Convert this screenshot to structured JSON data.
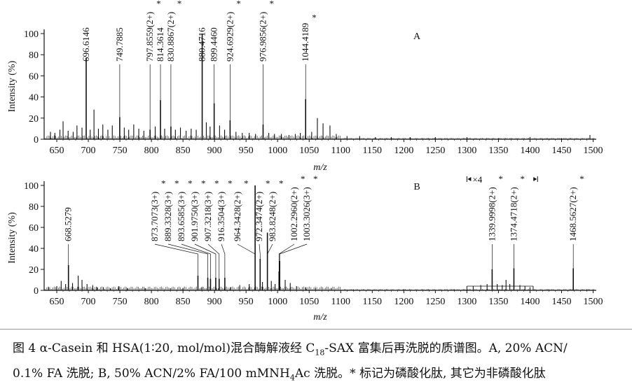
{
  "chart_data": [
    {
      "type": "line",
      "panel": "A",
      "xlabel": "m/z",
      "ylabel": "Intensity (%)",
      "xlim": [
        630,
        1505
      ],
      "ylim": [
        0,
        100
      ],
      "x_ticks": [
        650,
        700,
        750,
        800,
        850,
        900,
        950,
        1000,
        1050,
        1100,
        1150,
        1200,
        1250,
        1300,
        1350,
        1400,
        1450,
        1500
      ],
      "y_ticks": [
        0,
        20,
        40,
        60,
        80,
        100
      ],
      "peaks": [
        {
          "mz": 696.6146,
          "intensity": 77,
          "label": "696.6146",
          "star": false
        },
        {
          "mz": 749.7885,
          "intensity": 21,
          "label": "749.7885",
          "star": false
        },
        {
          "mz": 797.8559,
          "intensity": 9,
          "label": "797.8559(2+)",
          "star": true
        },
        {
          "mz": 814.3614,
          "intensity": 37,
          "label": "814.3614",
          "star": false
        },
        {
          "mz": 830.8867,
          "intensity": 12,
          "label": "830.8867(2+)",
          "star": true
        },
        {
          "mz": 880.4716,
          "intensity": 100,
          "label": "880.4716",
          "star": false
        },
        {
          "mz": 899.446,
          "intensity": 34,
          "label": "899.4460",
          "star": false
        },
        {
          "mz": 924.6929,
          "intensity": 18,
          "label": "924.6929(2+)",
          "star": true
        },
        {
          "mz": 976.9856,
          "intensity": 14,
          "label": "976.9856(2+)",
          "star": true
        },
        {
          "mz": 1044.4189,
          "intensity": 38,
          "label": "1044.4189",
          "star": true
        }
      ],
      "minor_peaks": [
        {
          "mz": 640,
          "intensity": 7
        },
        {
          "mz": 647,
          "intensity": 6
        },
        {
          "mz": 655,
          "intensity": 9
        },
        {
          "mz": 660,
          "intensity": 17
        },
        {
          "mz": 668,
          "intensity": 8
        },
        {
          "mz": 676,
          "intensity": 7
        },
        {
          "mz": 682,
          "intensity": 13
        },
        {
          "mz": 690,
          "intensity": 11
        },
        {
          "mz": 703,
          "intensity": 9
        },
        {
          "mz": 709,
          "intensity": 28
        },
        {
          "mz": 716,
          "intensity": 10
        },
        {
          "mz": 723,
          "intensity": 14
        },
        {
          "mz": 731,
          "intensity": 9
        },
        {
          "mz": 738,
          "intensity": 13
        },
        {
          "mz": 757,
          "intensity": 11
        },
        {
          "mz": 764,
          "intensity": 9
        },
        {
          "mz": 772,
          "intensity": 14
        },
        {
          "mz": 780,
          "intensity": 10
        },
        {
          "mz": 788,
          "intensity": 8
        },
        {
          "mz": 806,
          "intensity": 12
        },
        {
          "mz": 821,
          "intensity": 10
        },
        {
          "mz": 838,
          "intensity": 9
        },
        {
          "mz": 846,
          "intensity": 11
        },
        {
          "mz": 855,
          "intensity": 8
        },
        {
          "mz": 863,
          "intensity": 10
        },
        {
          "mz": 871,
          "intensity": 9
        },
        {
          "mz": 887,
          "intensity": 16
        },
        {
          "mz": 893,
          "intensity": 12
        },
        {
          "mz": 908,
          "intensity": 13
        },
        {
          "mz": 916,
          "intensity": 9
        },
        {
          "mz": 934,
          "intensity": 7
        },
        {
          "mz": 944,
          "intensity": 6
        },
        {
          "mz": 955,
          "intensity": 6
        },
        {
          "mz": 965,
          "intensity": 5
        },
        {
          "mz": 986,
          "intensity": 6
        },
        {
          "mz": 995,
          "intensity": 5
        },
        {
          "mz": 1006,
          "intensity": 5
        },
        {
          "mz": 1018,
          "intensity": 4
        },
        {
          "mz": 1028,
          "intensity": 5
        },
        {
          "mz": 1036,
          "intensity": 6
        },
        {
          "mz": 1054,
          "intensity": 7
        },
        {
          "mz": 1063,
          "intensity": 20
        },
        {
          "mz": 1072,
          "intensity": 15
        },
        {
          "mz": 1083,
          "intensity": 13
        },
        {
          "mz": 1093,
          "intensity": 5
        },
        {
          "mz": 1110,
          "intensity": 3
        },
        {
          "mz": 1130,
          "intensity": 3
        },
        {
          "mz": 1155,
          "intensity": 2
        },
        {
          "mz": 1180,
          "intensity": 2
        },
        {
          "mz": 1210,
          "intensity": 2
        },
        {
          "mz": 1250,
          "intensity": 2
        },
        {
          "mz": 1300,
          "intensity": 2
        },
        {
          "mz": 1350,
          "intensity": 1
        },
        {
          "mz": 1400,
          "intensity": 2
        },
        {
          "mz": 1450,
          "intensity": 1
        },
        {
          "mz": 1495,
          "intensity": 4
        }
      ]
    },
    {
      "type": "line",
      "panel": "B",
      "xlabel": "m/z",
      "ylabel": "Intensity (%)",
      "xlim": [
        630,
        1505
      ],
      "ylim": [
        0,
        100
      ],
      "x_ticks": [
        650,
        700,
        750,
        800,
        850,
        900,
        950,
        1000,
        1050,
        1100,
        1150,
        1200,
        1250,
        1300,
        1350,
        1400,
        1450,
        1500
      ],
      "y_ticks": [
        0,
        20,
        40,
        60,
        80,
        100
      ],
      "zoom_region": {
        "from": 1300,
        "to": 1405,
        "label": "×4"
      },
      "peaks": [
        {
          "mz": 668.5279,
          "intensity": 24,
          "label": "668.5279",
          "star": false
        },
        {
          "mz": 873.7073,
          "intensity": 14,
          "label": "873.7073(3+)",
          "star": true
        },
        {
          "mz": 889.3328,
          "intensity": 12,
          "label": "889.3328(3+)",
          "star": true
        },
        {
          "mz": 893.6585,
          "intensity": 11,
          "label": "893.6585(3+)",
          "star": true
        },
        {
          "mz": 901.975,
          "intensity": 12,
          "label": "901.9750(3+)",
          "star": true
        },
        {
          "mz": 907.3218,
          "intensity": 11,
          "label": "907.3218(3+)",
          "star": true
        },
        {
          "mz": 916.3504,
          "intensity": 12,
          "label": "916.3504(3+)",
          "star": true
        },
        {
          "mz": 964.3428,
          "intensity": 100,
          "label": "964.3428(2+)",
          "star": true
        },
        {
          "mz": 972.3474,
          "intensity": 30,
          "label": "972.3474(2+)",
          "star": true
        },
        {
          "mz": 983.8248,
          "intensity": 55,
          "label": "983.8248(2+)",
          "star": true
        },
        {
          "mz": 1002.296,
          "intensity": 18,
          "label": "1002.2960(2+)",
          "star": true
        },
        {
          "mz": 1003.3026,
          "intensity": 28,
          "label": "1003.3026(3+)",
          "star": true
        },
        {
          "mz": 1339.9998,
          "intensity": 20,
          "label": "1339.9998(2+)",
          "star": true
        },
        {
          "mz": 1374.4718,
          "intensity": 21,
          "label": "1374.4718(2+)",
          "star": true
        },
        {
          "mz": 1468.5627,
          "intensity": 21,
          "label": "1468.5627(2+)",
          "star": true
        }
      ],
      "minor_peaks": [
        {
          "mz": 637,
          "intensity": 3
        },
        {
          "mz": 650,
          "intensity": 4
        },
        {
          "mz": 657,
          "intensity": 9
        },
        {
          "mz": 664,
          "intensity": 6
        },
        {
          "mz": 675,
          "intensity": 7
        },
        {
          "mz": 684,
          "intensity": 14
        },
        {
          "mz": 690,
          "intensity": 10
        },
        {
          "mz": 698,
          "intensity": 6
        },
        {
          "mz": 707,
          "intensity": 5
        },
        {
          "mz": 714,
          "intensity": 3
        },
        {
          "mz": 724,
          "intensity": 3
        },
        {
          "mz": 735,
          "intensity": 2
        },
        {
          "mz": 748,
          "intensity": 4
        },
        {
          "mz": 762,
          "intensity": 2
        },
        {
          "mz": 790,
          "intensity": 2
        },
        {
          "mz": 830,
          "intensity": 2
        },
        {
          "mz": 850,
          "intensity": 2
        },
        {
          "mz": 880,
          "intensity": 3
        },
        {
          "mz": 925,
          "intensity": 3
        },
        {
          "mz": 940,
          "intensity": 5
        },
        {
          "mz": 955,
          "intensity": 6
        },
        {
          "mz": 976,
          "intensity": 8
        },
        {
          "mz": 990,
          "intensity": 9
        },
        {
          "mz": 996,
          "intensity": 6
        },
        {
          "mz": 1012,
          "intensity": 10
        },
        {
          "mz": 1020,
          "intensity": 7
        },
        {
          "mz": 1030,
          "intensity": 4
        },
        {
          "mz": 1045,
          "intensity": 3
        },
        {
          "mz": 1060,
          "intensity": 2
        },
        {
          "mz": 1085,
          "intensity": 2
        },
        {
          "mz": 1120,
          "intensity": 1
        },
        {
          "mz": 1200,
          "intensity": 1
        },
        {
          "mz": 1280,
          "intensity": 1
        },
        {
          "mz": 1310,
          "intensity": 4
        },
        {
          "mz": 1322,
          "intensity": 5
        },
        {
          "mz": 1332,
          "intensity": 6
        },
        {
          "mz": 1348,
          "intensity": 6
        },
        {
          "mz": 1356,
          "intensity": 5
        },
        {
          "mz": 1362,
          "intensity": 10
        },
        {
          "mz": 1368,
          "intensity": 6
        },
        {
          "mz": 1384,
          "intensity": 5
        },
        {
          "mz": 1392,
          "intensity": 4
        },
        {
          "mz": 1400,
          "intensity": 3
        },
        {
          "mz": 1430,
          "intensity": 1
        },
        {
          "mz": 1490,
          "intensity": 1
        }
      ]
    }
  ],
  "caption": {
    "line1": "图 4  α-Casein 和 HSA(1∶20, mol/mol)混合酶解液经 C",
    "sub18": "18",
    "line1b": "-SAX 富集后再洗脱的质谱图。A, 20% ACN/",
    "line2a": "0.1% FA 洗脱; B, 50% ACN/2% FA/100 mMNH",
    "sub4": "4",
    "line2b": "Ac 洗脱。* 标记为磷酸化肽, 其它为非磷酸化肽"
  }
}
